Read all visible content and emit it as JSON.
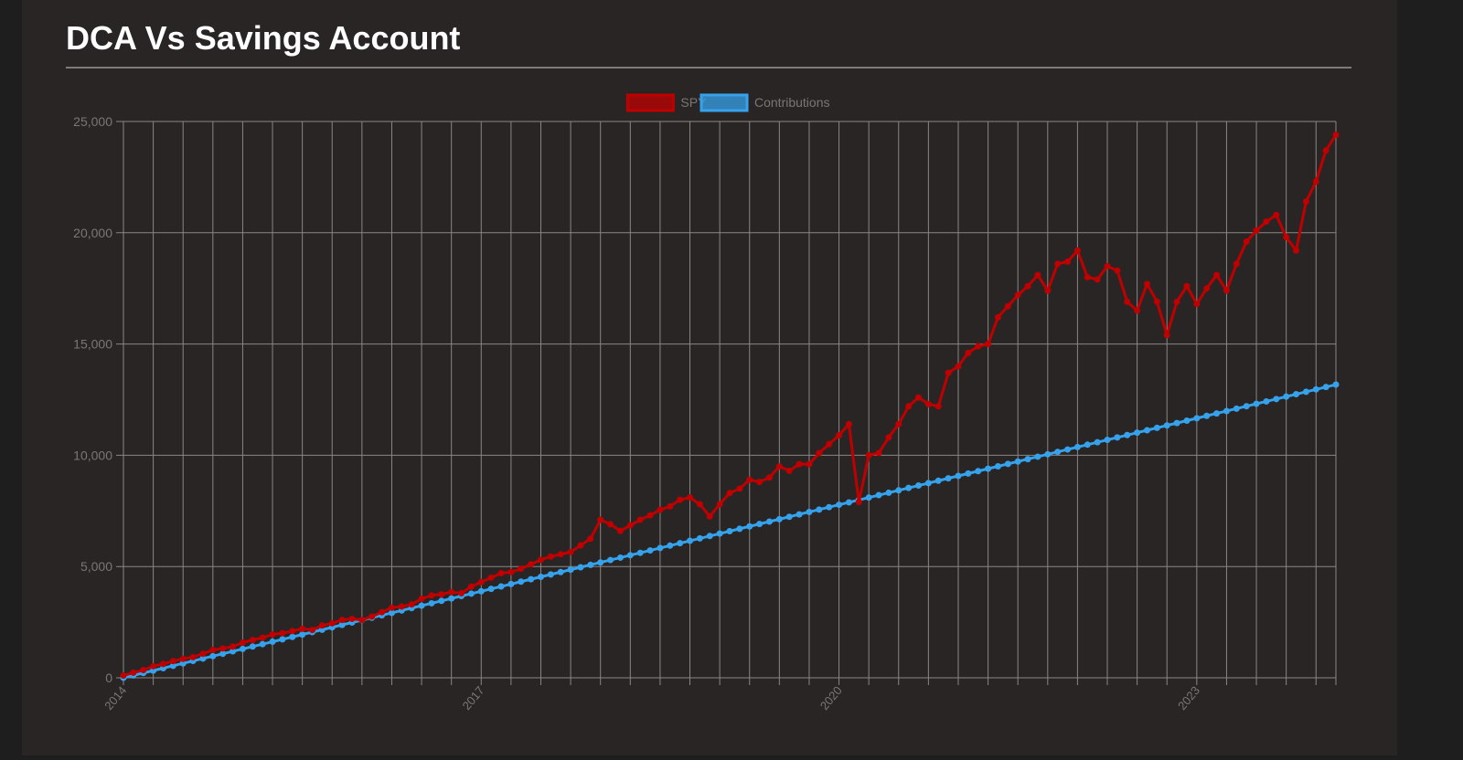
{
  "chart_data": {
    "type": "line",
    "title": "DCA Vs Savings Account",
    "categories": [
      "2014",
      null,
      null,
      null,
      null,
      null,
      null,
      null,
      null,
      null,
      null,
      null,
      null,
      null,
      null,
      null,
      null,
      null,
      null,
      null,
      null,
      null,
      null,
      null,
      null,
      null,
      null,
      null,
      null,
      null,
      null,
      null,
      null,
      null,
      null,
      null,
      "2017",
      null,
      null,
      null,
      null,
      null,
      null,
      null,
      null,
      null,
      null,
      null,
      null,
      null,
      null,
      null,
      null,
      null,
      null,
      null,
      null,
      null,
      null,
      null,
      null,
      null,
      null,
      null,
      null,
      null,
      null,
      null,
      null,
      null,
      null,
      null,
      "2020",
      null,
      null,
      null,
      null,
      null,
      null,
      null,
      null,
      null,
      null,
      null,
      null,
      null,
      null,
      null,
      null,
      null,
      null,
      null,
      null,
      null,
      null,
      null,
      null,
      null,
      null,
      null,
      null,
      null,
      null,
      null,
      null,
      null,
      null,
      null,
      "2023",
      null,
      null,
      null,
      null,
      null,
      null,
      null,
      null,
      null,
      null,
      null,
      null,
      null,
      null
    ],
    "series": [
      {
        "name": "SPY",
        "color": "#c00000",
        "values": [
          100,
          230,
          350,
          520,
          620,
          750,
          850,
          930,
          1080,
          1250,
          1320,
          1400,
          1580,
          1700,
          1800,
          1950,
          2000,
          2100,
          2200,
          2150,
          2350,
          2450,
          2600,
          2650,
          2600,
          2750,
          2950,
          3150,
          3200,
          3300,
          3550,
          3700,
          3750,
          3850,
          3800,
          4100,
          4300,
          4500,
          4700,
          4750,
          4900,
          5100,
          5300,
          5450,
          5550,
          5650,
          5950,
          6250,
          7100,
          6900,
          6600,
          6850,
          7100,
          7300,
          7550,
          7700,
          8000,
          8100,
          7800,
          7250,
          7800,
          8300,
          8500,
          8900,
          8800,
          9000,
          9500,
          9300,
          9600,
          9600,
          10100,
          10500,
          10900,
          11400,
          7900,
          10000,
          10100,
          10800,
          11400,
          12200,
          12600,
          12300,
          12200,
          13700,
          14000,
          14600,
          14900,
          15000,
          16200,
          16700,
          17200,
          17600,
          18100,
          17400,
          18600,
          18700,
          19200,
          18000,
          17900,
          18500,
          18300,
          16900,
          16500,
          17700,
          16900,
          15400,
          16900,
          17600,
          16800,
          17500,
          18100,
          17400,
          18600,
          19600,
          20100,
          20500,
          20800,
          19800,
          19200,
          21400,
          22300,
          23700,
          24400
        ]
      },
      {
        "name": "Contributions",
        "color": "#36a2eb",
        "values": [
          0,
          108,
          216,
          324,
          432,
          540,
          648,
          756,
          864,
          972,
          1080,
          1188,
          1296,
          1404,
          1512,
          1620,
          1728,
          1836,
          1944,
          2052,
          2160,
          2268,
          2376,
          2484,
          2592,
          2700,
          2808,
          2916,
          3024,
          3132,
          3240,
          3348,
          3456,
          3564,
          3672,
          3780,
          3888,
          3996,
          4104,
          4212,
          4320,
          4428,
          4536,
          4644,
          4752,
          4860,
          4968,
          5076,
          5184,
          5292,
          5400,
          5508,
          5616,
          5724,
          5832,
          5940,
          6048,
          6156,
          6264,
          6372,
          6480,
          6588,
          6696,
          6804,
          6912,
          7020,
          7128,
          7236,
          7344,
          7452,
          7560,
          7668,
          7776,
          7884,
          7992,
          8100,
          8208,
          8316,
          8424,
          8532,
          8640,
          8748,
          8856,
          8964,
          9072,
          9180,
          9288,
          9396,
          9504,
          9612,
          9720,
          9828,
          9936,
          10044,
          10152,
          10260,
          10368,
          10476,
          10584,
          10692,
          10800,
          10908,
          11016,
          11124,
          11232,
          11340,
          11448,
          11556,
          11664,
          11772,
          11880,
          11988,
          12096,
          12204,
          12312,
          12420,
          12528,
          12636,
          12744,
          12852,
          12960,
          13068,
          13176
        ]
      }
    ],
    "ylim": [
      0,
      25000
    ],
    "yticks": [
      0,
      {
        "value": 5000,
        "label": "5,000"
      },
      {
        "value": 10000,
        "label": "10,000"
      },
      {
        "value": 15000,
        "label": "15,000"
      },
      {
        "value": 20000,
        "label": "20,000"
      },
      {
        "value": 25000,
        "label": "25,000"
      }
    ],
    "grid": true,
    "legend": "top"
  }
}
